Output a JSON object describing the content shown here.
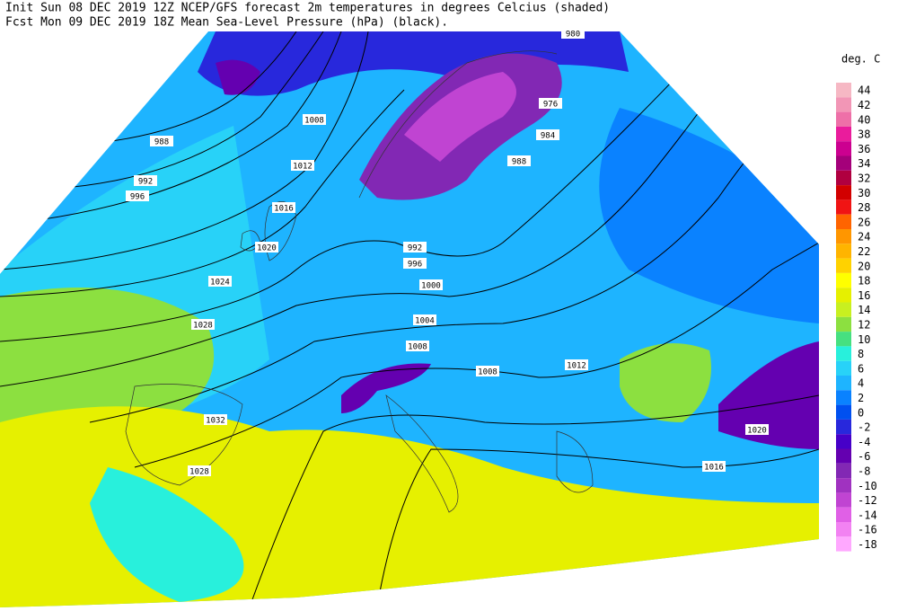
{
  "header": {
    "line1": "Init  Sun 08 DEC 2019 12Z  NCEP/GFS forecast 2m temperatures in degrees Celcius (shaded)",
    "line2": "Fcst Mon 09 DEC 2019 18Z  Mean Sea-Level Pressure (hPa) (black)."
  },
  "legend": {
    "title": "deg. C",
    "items": [
      {
        "label": 44,
        "color": "#f6b8c4"
      },
      {
        "label": 42,
        "color": "#f296b6"
      },
      {
        "label": 40,
        "color": "#ee70a8"
      },
      {
        "label": 38,
        "color": "#ea1c9c"
      },
      {
        "label": 36,
        "color": "#cc0090"
      },
      {
        "label": 34,
        "color": "#a4007a"
      },
      {
        "label": 32,
        "color": "#b00040"
      },
      {
        "label": 30,
        "color": "#d20000"
      },
      {
        "label": 28,
        "color": "#f01414"
      },
      {
        "label": 26,
        "color": "#ff6400"
      },
      {
        "label": 24,
        "color": "#ff9600"
      },
      {
        "label": 22,
        "color": "#ffb400"
      },
      {
        "label": 20,
        "color": "#ffd200"
      },
      {
        "label": 18,
        "color": "#ffff00"
      },
      {
        "label": 16,
        "color": "#e6f000"
      },
      {
        "label": 14,
        "color": "#c8f020"
      },
      {
        "label": 12,
        "color": "#8ce040"
      },
      {
        "label": 10,
        "color": "#46e080"
      },
      {
        "label": 8,
        "color": "#28f0dc"
      },
      {
        "label": 6,
        "color": "#28d2f8"
      },
      {
        "label": 4,
        "color": "#1eb4ff"
      },
      {
        "label": 2,
        "color": "#0a82ff"
      },
      {
        "label": 0,
        "color": "#0050f0"
      },
      {
        "label": -2,
        "color": "#2828dc"
      },
      {
        "label": -4,
        "color": "#4600c8"
      },
      {
        "label": -6,
        "color": "#6400b0"
      },
      {
        "label": -8,
        "color": "#8228b4"
      },
      {
        "label": -10,
        "color": "#a032c0"
      },
      {
        "label": -12,
        "color": "#c044d2"
      },
      {
        "label": -14,
        "color": "#e060e6"
      },
      {
        "label": -16,
        "color": "#f282f2"
      },
      {
        "label": -18,
        "color": "#ffa8ff"
      }
    ]
  },
  "isobar_labels": [
    988,
    992,
    996,
    1008,
    1012,
    1016,
    1020,
    1024,
    1028,
    1032,
    1028,
    1000,
    1004,
    1008,
    1008,
    1012,
    976,
    984,
    988,
    1020,
    1016,
    992,
    996,
    980
  ]
}
